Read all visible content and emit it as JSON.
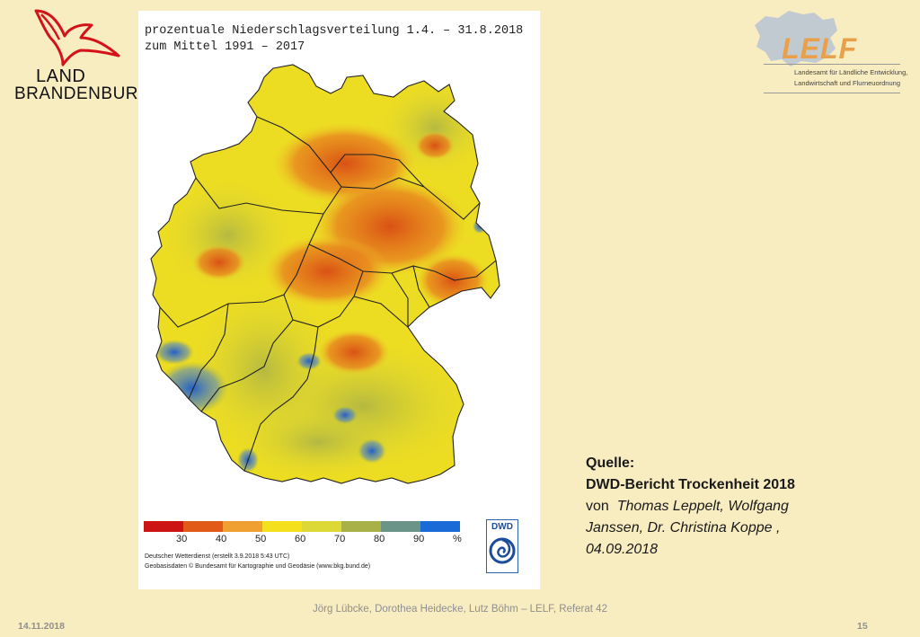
{
  "header": {
    "left_logo": {
      "line1": "LAND",
      "line2": "BRANDENBURG",
      "icon": "eagle-icon",
      "accent": "#d4121a"
    },
    "right_logo": {
      "name": "LELF",
      "subtitle_line1": "Landesamt für Ländliche Entwicklung,",
      "subtitle_line2": "Landwirtschaft und Flurneuordnung",
      "accent": "#e8a04a"
    }
  },
  "map": {
    "title_line1": "prozentuale Niederschlagsverteilung 1.4. – 31.8.2018",
    "title_line2": "zum Mittel 1991 – 2017",
    "legend": {
      "colors": [
        "#cc1414",
        "#e25a18",
        "#f0a030",
        "#f5e01e",
        "#dcd836",
        "#a8b048",
        "#6a9488",
        "#1a6ad8"
      ],
      "labels": [
        "30",
        "40",
        "50",
        "60",
        "70",
        "80",
        "90",
        "%"
      ]
    },
    "credit_line1": "Deutscher Wetterdienst (erstellt 3.9.2018 5:43 UTC)",
    "credit_line2": "Geobasisdaten © Bundesamt für Kartographie und Geodäsie (www.bkg.bund.de)",
    "dwd_logo_text": "DWD"
  },
  "source": {
    "label": "Quelle:",
    "report": "DWD-Bericht Trockenheit 2018",
    "by_prefix": "von",
    "authors_line1": "Thomas Leppelt, Wolfgang",
    "authors_line2": "Janssen, Dr. Christina Koppe ,",
    "date": "04.09.2018"
  },
  "footer": {
    "authors": "Jörg Lübcke, Dorothea Heidecke, Lutz Böhm – LELF, Referat 42",
    "date": "14.11.2018",
    "page": "15"
  }
}
